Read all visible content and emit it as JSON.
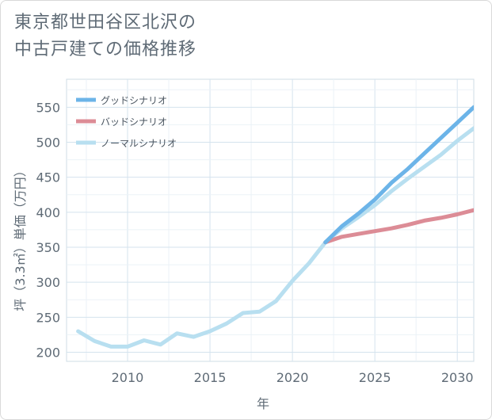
{
  "title_lines": [
    "東京都世田谷区北沢の",
    "中古戸建ての価格推移"
  ],
  "chart_data": {
    "type": "line",
    "title": "東京都世田谷区北沢の中古戸建ての価格推移",
    "xlabel": "年",
    "ylabel": "坪（3.3㎡）単価（万円）",
    "xlim": [
      2006.3,
      2031
    ],
    "ylim": [
      187,
      590
    ],
    "x_ticks": [
      2010,
      2015,
      2020,
      2025,
      2030
    ],
    "y_ticks": [
      200,
      250,
      300,
      350,
      400,
      450,
      500,
      550
    ],
    "grid": true,
    "legend_position": "top-left",
    "series": [
      {
        "name": "グッドシナリオ",
        "color": "#6cb4e8",
        "x": [
          2022,
          2023,
          2024,
          2025,
          2026,
          2027,
          2028,
          2029,
          2030,
          2031
        ],
        "values": [
          357,
          380,
          398,
          418,
          442,
          462,
          484,
          506,
          528,
          550
        ]
      },
      {
        "name": "バッドシナリオ",
        "color": "#dc8c96",
        "x": [
          2022,
          2023,
          2024,
          2025,
          2026,
          2027,
          2028,
          2029,
          2030,
          2031
        ],
        "values": [
          357,
          365,
          369,
          373,
          377,
          382,
          388,
          392,
          397,
          403
        ]
      },
      {
        "name": "ノーマルシナリオ",
        "color": "#b8dff0",
        "x": [
          2007,
          2008,
          2009,
          2010,
          2011,
          2012,
          2013,
          2014,
          2015,
          2016,
          2017,
          2018,
          2019,
          2020,
          2021,
          2022,
          2023,
          2024,
          2025,
          2026,
          2027,
          2028,
          2029,
          2030,
          2031
        ],
        "values": [
          230,
          216,
          208,
          208,
          217,
          211,
          227,
          222,
          230,
          241,
          256,
          258,
          273,
          302,
          327,
          357,
          377,
          393,
          410,
          430,
          448,
          465,
          482,
          502,
          520
        ]
      }
    ]
  }
}
